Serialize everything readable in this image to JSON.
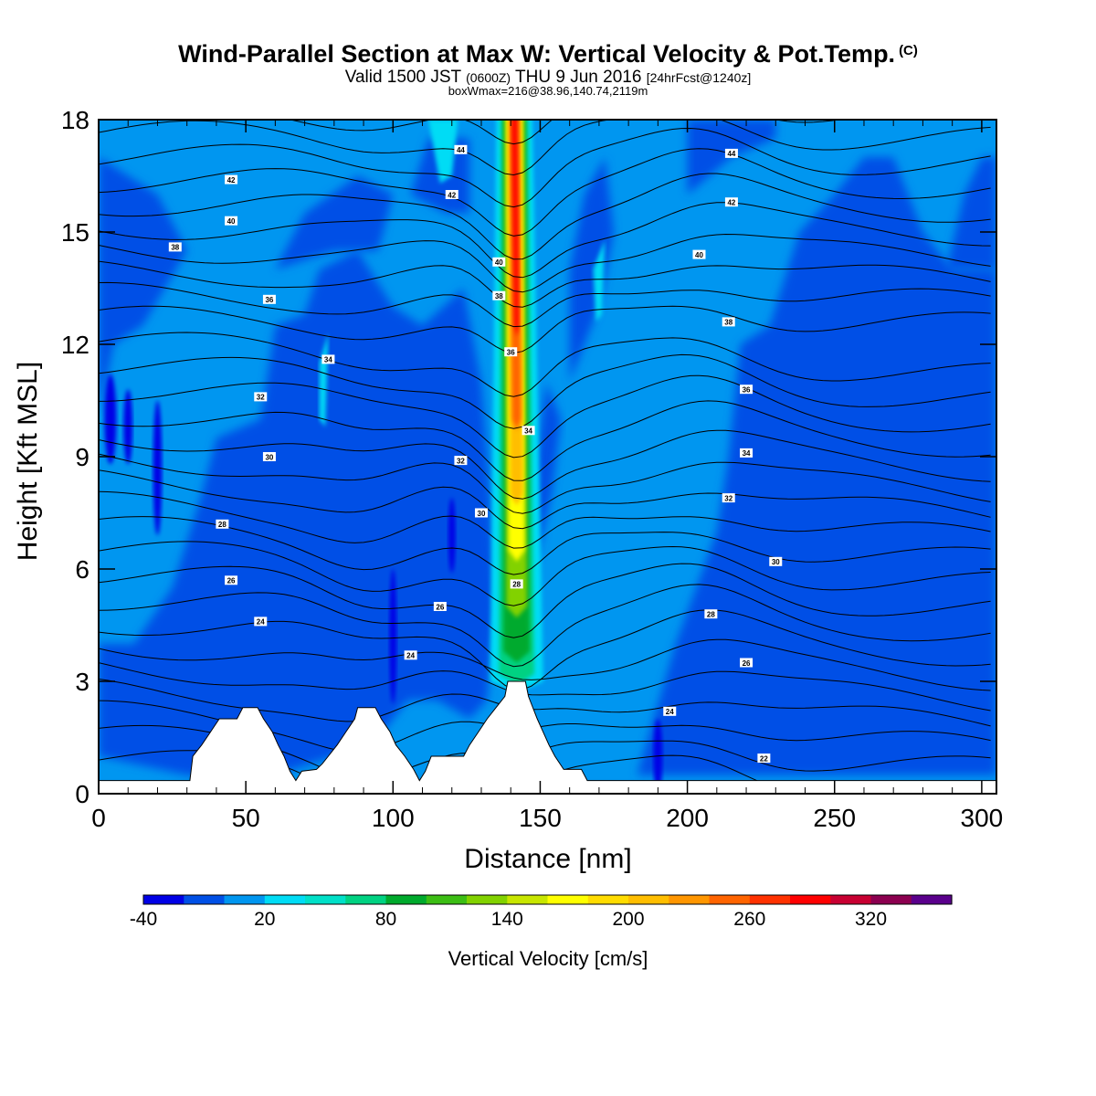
{
  "header": {
    "title": "Wind-Parallel Section at Max W: Vertical Velocity & Pot.Temp.",
    "copyright": "(C)",
    "valid_prefix": "Valid 1500 JST",
    "valid_utc": "(0600Z)",
    "valid_date": "THU 9 Jun 2016",
    "forecast": "[24hrFcst@1240z]",
    "boxwmax": "boxWmax=216@38.96,140.74,2119m"
  },
  "chart_data": {
    "type": "heatmap",
    "xlabel": "Distance [nm]",
    "ylabel": "Height [Kft MSL]",
    "xlim": [
      0,
      305
    ],
    "ylim": [
      0,
      18
    ],
    "x_ticks": [
      0,
      50,
      100,
      150,
      200,
      250,
      300
    ],
    "y_ticks": [
      0,
      3,
      6,
      9,
      12,
      15,
      18
    ],
    "colorbar": {
      "title": "Vertical Velocity [cm/s]",
      "levels_start": -40,
      "level_step": 20,
      "labels": [
        -40,
        20,
        80,
        140,
        200,
        260,
        320
      ],
      "colors": [
        "#0000e6",
        "#0050e6",
        "#0096f0",
        "#00dcf5",
        "#00e0c8",
        "#00d282",
        "#00aa2d",
        "#3cbe14",
        "#82d200",
        "#c8e600",
        "#ffff00",
        "#ffdc00",
        "#ffbe00",
        "#ff9600",
        "#ff6400",
        "#ff3200",
        "#ff0000",
        "#c80032",
        "#8c0050",
        "#5a008c"
      ]
    },
    "updraft": {
      "x_center_nm": 142,
      "base_kft": 3.0,
      "core_base_kft": 10.0,
      "max_w": 216
    },
    "theta_labels": [
      {
        "value": "42",
        "x": 45,
        "y": 16.4
      },
      {
        "value": "40",
        "x": 45,
        "y": 15.3
      },
      {
        "value": "38",
        "x": 26,
        "y": 14.6
      },
      {
        "value": "36",
        "x": 58,
        "y": 13.2
      },
      {
        "value": "34",
        "x": 78,
        "y": 11.6
      },
      {
        "value": "32",
        "x": 55,
        "y": 10.6
      },
      {
        "value": "30",
        "x": 58,
        "y": 9.0
      },
      {
        "value": "28",
        "x": 42,
        "y": 7.2
      },
      {
        "value": "26",
        "x": 45,
        "y": 5.7
      },
      {
        "value": "24",
        "x": 55,
        "y": 4.6
      },
      {
        "value": "44",
        "x": 123,
        "y": 17.2
      },
      {
        "value": "42",
        "x": 120,
        "y": 16.0
      },
      {
        "value": "40",
        "x": 136,
        "y": 14.2
      },
      {
        "value": "38",
        "x": 136,
        "y": 13.3
      },
      {
        "value": "36",
        "x": 140,
        "y": 11.8
      },
      {
        "value": "34",
        "x": 146,
        "y": 9.7
      },
      {
        "value": "32",
        "x": 123,
        "y": 8.9
      },
      {
        "value": "30",
        "x": 130,
        "y": 7.5
      },
      {
        "value": "28",
        "x": 142,
        "y": 5.6
      },
      {
        "value": "26",
        "x": 116,
        "y": 5.0
      },
      {
        "value": "24",
        "x": 106,
        "y": 3.7
      },
      {
        "value": "44",
        "x": 215,
        "y": 17.1
      },
      {
        "value": "42",
        "x": 215,
        "y": 15.8
      },
      {
        "value": "40",
        "x": 204,
        "y": 14.4
      },
      {
        "value": "38",
        "x": 214,
        "y": 12.6
      },
      {
        "value": "36",
        "x": 220,
        "y": 10.8
      },
      {
        "value": "34",
        "x": 220,
        "y": 9.1
      },
      {
        "value": "32",
        "x": 214,
        "y": 7.9
      },
      {
        "value": "30",
        "x": 230,
        "y": 6.2
      },
      {
        "value": "28",
        "x": 208,
        "y": 4.8
      },
      {
        "value": "26",
        "x": 220,
        "y": 3.5
      },
      {
        "value": "24",
        "x": 194,
        "y": 2.2
      },
      {
        "value": "22",
        "x": 226,
        "y": 0.95
      }
    ],
    "terrain": [
      [
        0,
        0.35
      ],
      [
        31,
        0.35
      ],
      [
        32,
        1.0
      ],
      [
        35,
        1.3
      ],
      [
        38,
        1.65
      ],
      [
        41,
        2.0
      ],
      [
        47,
        2.0
      ],
      [
        49,
        2.3
      ],
      [
        54,
        2.3
      ],
      [
        56,
        2.0
      ],
      [
        59,
        1.65
      ],
      [
        61,
        1.3
      ],
      [
        63,
        1.0
      ],
      [
        65,
        0.6
      ],
      [
        67,
        0.35
      ],
      [
        69,
        0.6
      ],
      [
        74,
        0.65
      ],
      [
        76,
        0.8
      ],
      [
        78,
        1.0
      ],
      [
        81,
        1.3
      ],
      [
        84,
        1.65
      ],
      [
        87,
        2.0
      ],
      [
        88,
        2.3
      ],
      [
        94,
        2.3
      ],
      [
        96,
        2.0
      ],
      [
        99,
        1.65
      ],
      [
        101,
        1.3
      ],
      [
        104,
        1.0
      ],
      [
        107,
        0.65
      ],
      [
        109,
        0.35
      ],
      [
        111,
        0.6
      ],
      [
        113,
        1.0
      ],
      [
        124,
        1.0
      ],
      [
        126,
        1.3
      ],
      [
        129,
        1.65
      ],
      [
        132,
        2.0
      ],
      [
        135,
        2.3
      ],
      [
        138,
        2.6
      ],
      [
        139,
        3.0
      ],
      [
        145,
        3.0
      ],
      [
        146,
        2.6
      ],
      [
        149,
        2.0
      ],
      [
        151,
        1.65
      ],
      [
        153,
        1.3
      ],
      [
        155,
        1.0
      ],
      [
        158,
        0.65
      ],
      [
        164,
        0.65
      ],
      [
        166,
        0.35
      ],
      [
        305,
        0.35
      ]
    ]
  }
}
